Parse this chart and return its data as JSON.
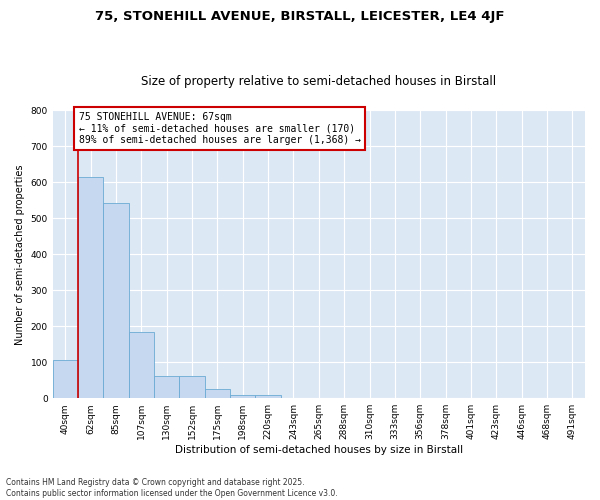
{
  "title_line1": "75, STONEHILL AVENUE, BIRSTALL, LEICESTER, LE4 4JF",
  "title_line2": "Size of property relative to semi-detached houses in Birstall",
  "xlabel": "Distribution of semi-detached houses by size in Birstall",
  "ylabel": "Number of semi-detached properties",
  "footnote": "Contains HM Land Registry data © Crown copyright and database right 2025.\nContains public sector information licensed under the Open Government Licence v3.0.",
  "categories": [
    "40sqm",
    "62sqm",
    "85sqm",
    "107sqm",
    "130sqm",
    "152sqm",
    "175sqm",
    "198sqm",
    "220sqm",
    "243sqm",
    "265sqm",
    "288sqm",
    "310sqm",
    "333sqm",
    "356sqm",
    "378sqm",
    "401sqm",
    "423sqm",
    "446sqm",
    "468sqm",
    "491sqm"
  ],
  "bar_values": [
    107,
    614,
    543,
    185,
    62,
    62,
    25,
    10,
    8,
    0,
    0,
    0,
    0,
    0,
    0,
    0,
    0,
    0,
    0,
    0,
    0
  ],
  "bar_color": "#c5d8ef",
  "bar_edge_color": "#6aaad4",
  "property_line_color": "#cc0000",
  "annotation_text": "75 STONEHILL AVENUE: 67sqm\n← 11% of semi-detached houses are smaller (170)\n89% of semi-detached houses are larger (1,368) →",
  "annotation_box_color": "#cc0000",
  "ylim": [
    0,
    800
  ],
  "yticks": [
    0,
    100,
    200,
    300,
    400,
    500,
    600,
    700,
    800
  ],
  "background_color": "#dde8f5",
  "grid_color": "#ffffff",
  "fig_background": "#ffffff",
  "title_fontsize": 9.5,
  "subtitle_fontsize": 8.5,
  "axis_label_fontsize": 7.5,
  "tick_fontsize": 6.5,
  "annotation_fontsize": 7.0,
  "ylabel_fontsize": 7.0,
  "footnote_fontsize": 5.5
}
